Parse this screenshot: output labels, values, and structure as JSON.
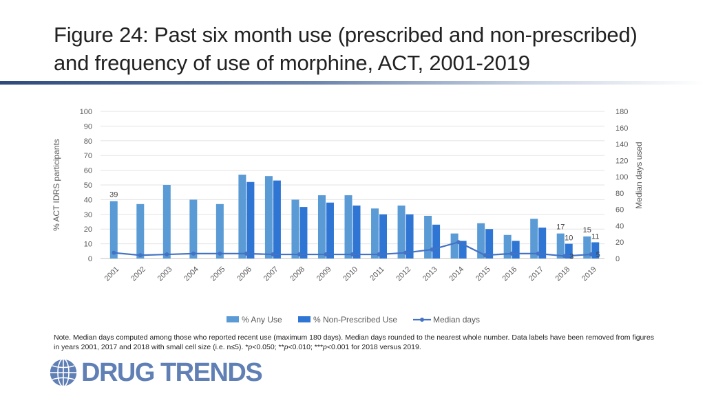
{
  "title": "Figure 24: Past six month use (prescribed and non-prescribed) and frequency of use of morphine, ACT, 2001-2019",
  "note": {
    "part1": "Note. Median days computed among those who reported recent use (maximum 180 days). Median days rounded to the nearest whole number. Data labels have been removed from figures in years 2001, 2017 and 2018 with small cell size (i.e. n≤5). *",
    "p1": "p",
    "part2": "<0.050; **",
    "p2": "p",
    "part3": "<0.010; ***",
    "p3": "p",
    "part4": "<0.001 for 2018 versus 2019."
  },
  "logo": {
    "text": "DRUG TRENDS",
    "icon": "globe-icon"
  },
  "chart_data": {
    "type": "bar",
    "categories": [
      "2001",
      "2002",
      "2003",
      "2004",
      "2005",
      "2006",
      "2007",
      "2008",
      "2009",
      "2010",
      "2011",
      "2012",
      "2013",
      "2014",
      "2015",
      "2016",
      "2017",
      "2018",
      "2019"
    ],
    "series": [
      {
        "name": "% Any Use",
        "type": "bar",
        "axis": "left",
        "color": "#5b9bd5",
        "values": [
          39,
          37,
          50,
          40,
          37,
          57,
          56,
          40,
          43,
          43,
          34,
          36,
          29,
          17,
          24,
          16,
          27,
          17,
          15
        ]
      },
      {
        "name": "% Non-Prescribed Use",
        "type": "bar",
        "axis": "left",
        "color": "#2e75d4",
        "values": [
          null,
          null,
          null,
          null,
          null,
          52,
          53,
          35,
          38,
          36,
          30,
          30,
          23,
          12,
          20,
          12,
          21,
          10,
          11
        ]
      },
      {
        "name": "Median days",
        "type": "line",
        "axis": "right",
        "color": "#4472c4",
        "values": [
          7,
          4,
          5,
          6,
          6,
          6,
          5,
          5,
          5,
          5,
          5,
          7,
          11,
          20,
          4,
          6,
          6,
          3,
          5
        ]
      }
    ],
    "data_labels": [
      {
        "series": 0,
        "index": 0,
        "text": "39"
      },
      {
        "series": 0,
        "index": 17,
        "text": "17"
      },
      {
        "series": 1,
        "index": 17,
        "text": "10"
      },
      {
        "series": 2,
        "index": 17,
        "text": "3"
      },
      {
        "series": 0,
        "index": 18,
        "text": "15"
      },
      {
        "series": 1,
        "index": 18,
        "text": "11"
      },
      {
        "series": 2,
        "index": 18,
        "text": "5"
      }
    ],
    "ylabel": "% ACT IDRS participants",
    "y2label": "Median days used",
    "ylim": [
      0,
      100
    ],
    "y2lim": [
      0,
      180
    ],
    "yticks": [
      0,
      10,
      20,
      30,
      40,
      50,
      60,
      70,
      80,
      90,
      100
    ],
    "y2ticks": [
      0,
      20,
      40,
      60,
      80,
      100,
      120,
      140,
      160,
      180
    ],
    "grid": true,
    "legend_position": "bottom"
  }
}
